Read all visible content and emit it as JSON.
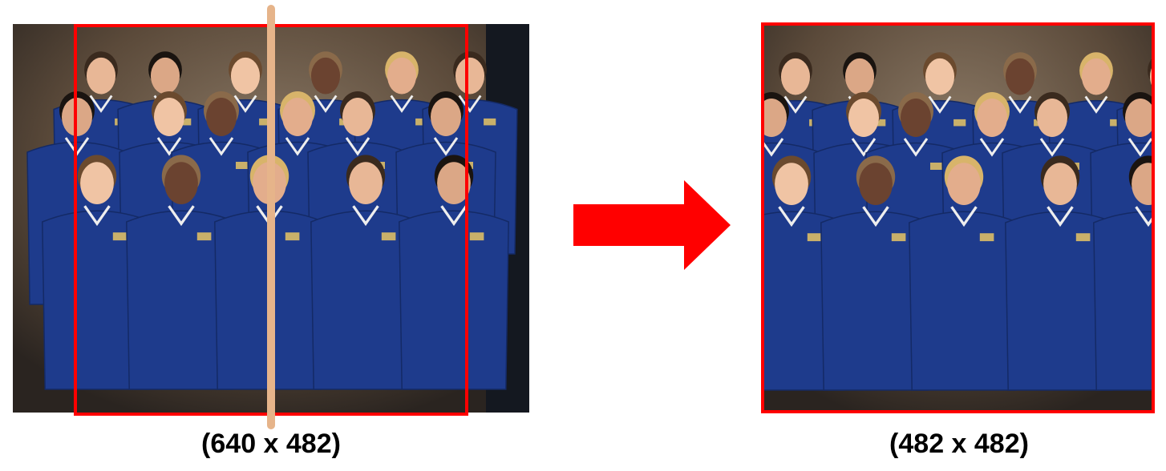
{
  "figure": {
    "source_image": {
      "size_label": "(640 x 482)",
      "width": 640,
      "height": 482,
      "photo_icon": "group-photo-icon"
    },
    "result_image": {
      "size_label": "(482 x 482)",
      "width": 482,
      "height": 482,
      "photo_icon": "group-photo-icon"
    },
    "colors": {
      "crop_box": "#ff0000",
      "arrow": "#ff0000",
      "center_line": "#e6b48a",
      "suit": "#1e3b8c",
      "backdrop": "#5b4a3a"
    },
    "arrow_icon": "right-arrow-icon"
  }
}
